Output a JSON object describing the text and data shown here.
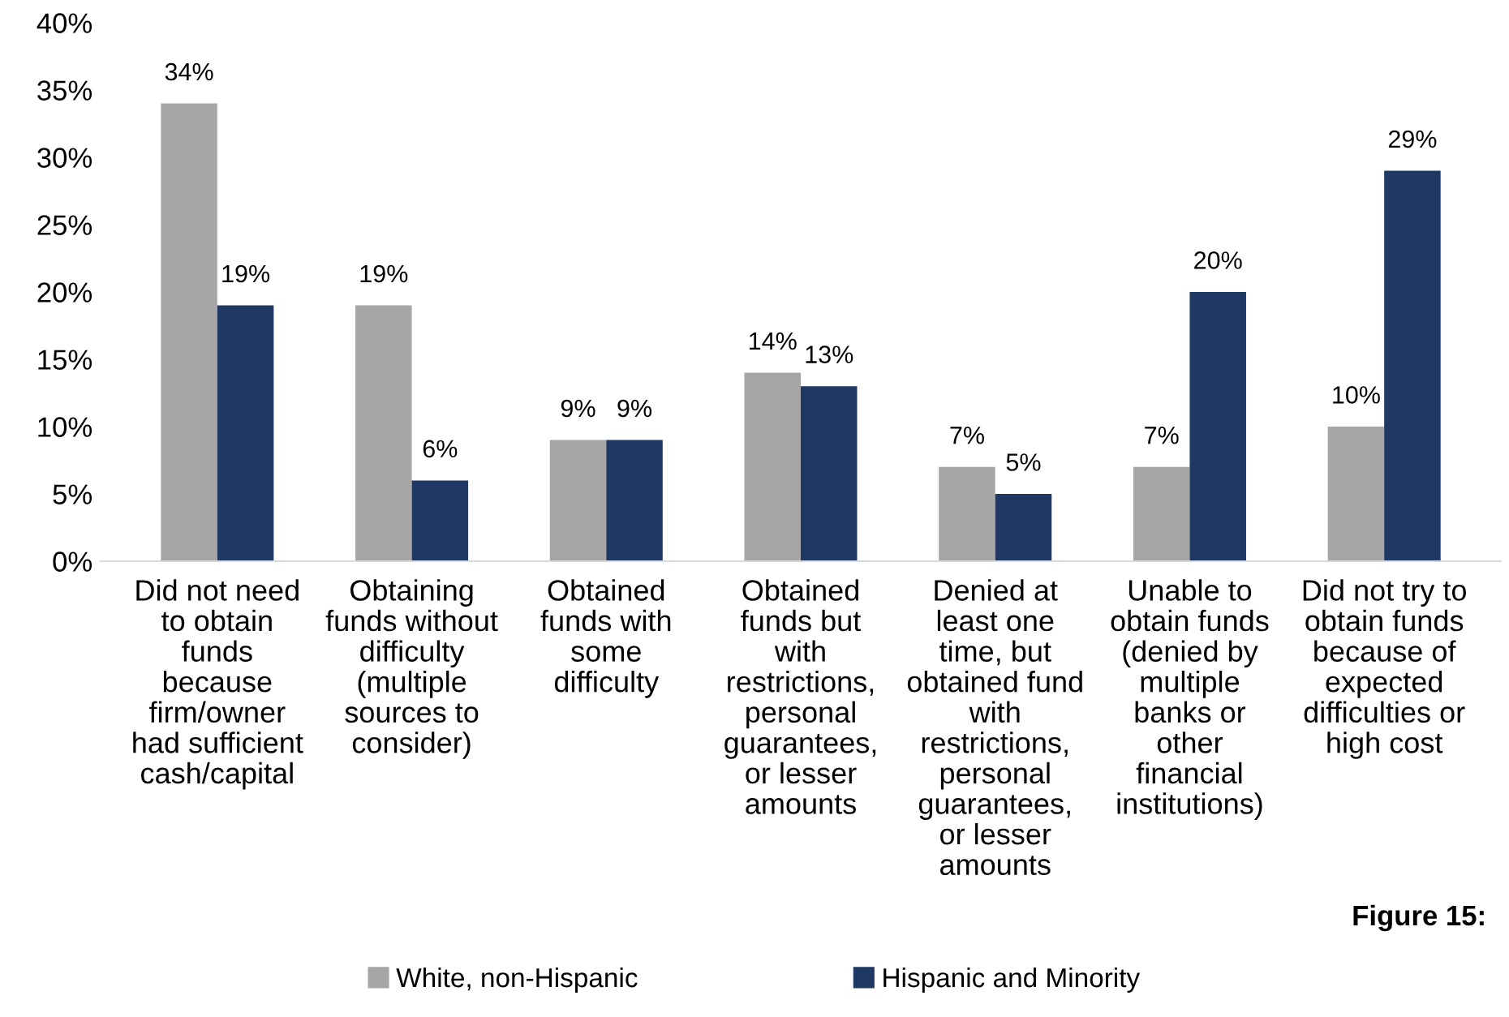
{
  "chart_data": {
    "type": "bar",
    "categories": [
      "Did not need\nto obtain\nfunds\nbecause\nfirm/owner\nhad sufficient\ncash/capital",
      "Obtaining\nfunds without\ndifficulty\n(multiple\nsources to\nconsider)",
      "Obtained\nfunds with\nsome\ndifficulty",
      "Obtained\nfunds but\nwith\nrestrictions,\npersonal\nguarantees,\nor lesser\namounts",
      "Denied at\nleast one\ntime, but\nobtained fund\nwith\nrestrictions,\npersonal\nguarantees,\nor lesser\namounts",
      "Unable to\nobtain funds\n(denied by\nmultiple\nbanks or\nother\nfinancial\ninstitutions)",
      "Did not try to\nobtain funds\nbecause of\nexpected\ndifficulties or\nhigh cost"
    ],
    "series": [
      {
        "name": "White, non-Hispanic",
        "color": "#a6a6a6",
        "values": [
          34,
          19,
          9,
          14,
          7,
          7,
          10
        ],
        "value_labels": [
          "34%",
          "19%",
          "9%",
          "14%",
          "7%",
          "7%",
          "10%"
        ]
      },
      {
        "name": "Hispanic and Minority",
        "color": "#1f3864",
        "values": [
          19,
          6,
          9,
          13,
          5,
          20,
          29
        ],
        "value_labels": [
          "19%",
          "6%",
          "9%",
          "13%",
          "5%",
          "20%",
          "29%"
        ]
      }
    ],
    "ylim": [
      0,
      40
    ],
    "yticks": [
      {
        "value": 0,
        "label": "0%"
      },
      {
        "value": 5,
        "label": "5%"
      },
      {
        "value": 10,
        "label": "10%"
      },
      {
        "value": 15,
        "label": "15%"
      },
      {
        "value": 20,
        "label": "20%"
      },
      {
        "value": 25,
        "label": "25%"
      },
      {
        "value": 30,
        "label": "30%"
      },
      {
        "value": 35,
        "label": "35%"
      },
      {
        "value": 40,
        "label": "40%"
      }
    ],
    "grid": false,
    "legend": "bottom",
    "annotations": [
      "Figure 15:"
    ]
  }
}
